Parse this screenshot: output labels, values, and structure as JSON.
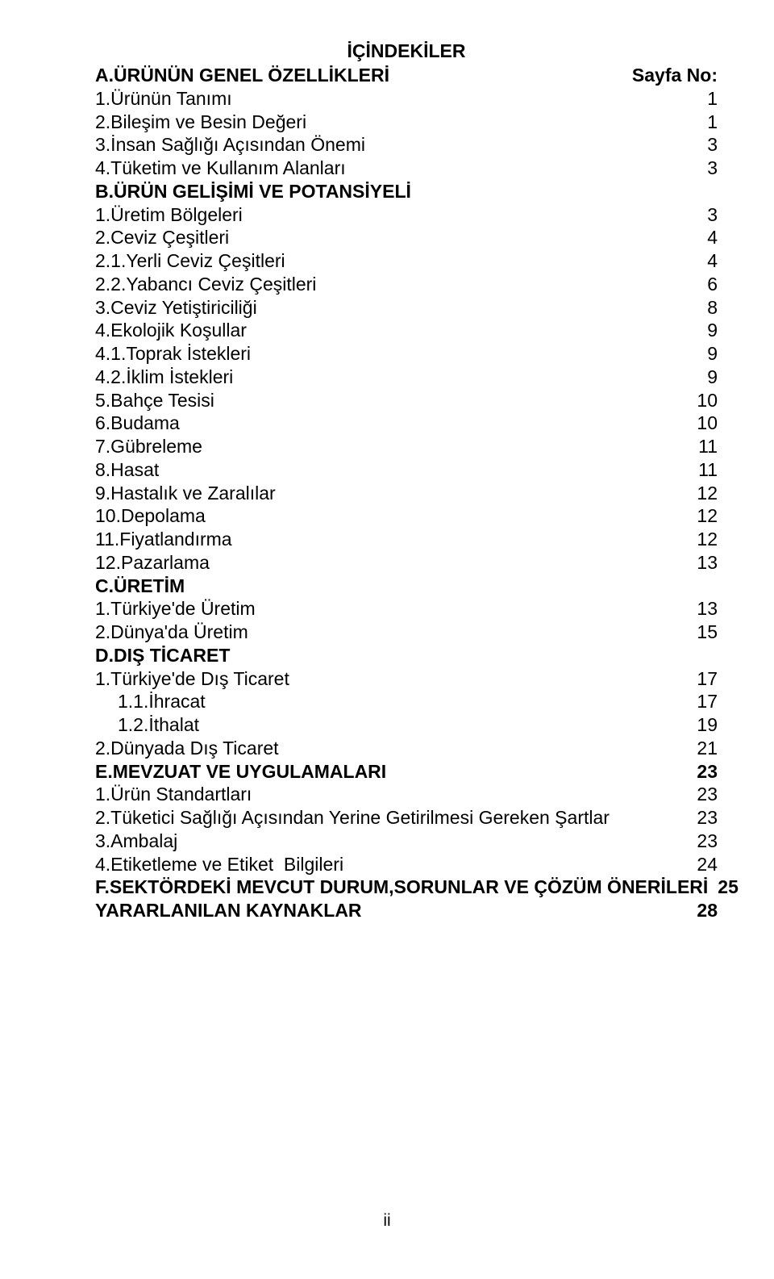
{
  "title": "İÇİNDEKİLER",
  "pageLabel": "Sayfa No:",
  "footer": "ii",
  "rows": [
    {
      "label": "A.ÜRÜNÜN GENEL ÖZELLİKLERİ",
      "page": "Sayfa No:",
      "bold": true
    },
    {
      "label": "1.Ürünün Tanımı",
      "page": "1"
    },
    {
      "label": "2.Bileşim ve Besin Değeri",
      "page": "1"
    },
    {
      "label": "3.İnsan Sağlığı Açısından Önemi",
      "page": "3"
    },
    {
      "label": "4.Tüketim ve Kullanım Alanları",
      "page": "3"
    },
    {
      "label": "B.ÜRÜN GELİŞİMİ VE POTANSİYELİ",
      "page": "",
      "bold": true
    },
    {
      "label": "1.Üretim Bölgeleri",
      "page": "3"
    },
    {
      "label": "2.Ceviz Çeşitleri",
      "page": "4"
    },
    {
      "label": "2.1.Yerli Ceviz Çeşitleri",
      "page": "4"
    },
    {
      "label": "2.2.Yabancı Ceviz Çeşitleri",
      "page": "6"
    },
    {
      "label": "3.Ceviz Yetiştiriciliği",
      "page": "8"
    },
    {
      "label": "4.Ekolojik Koşullar",
      "page": "9"
    },
    {
      "label": "4.1.Toprak İstekleri",
      "page": "9"
    },
    {
      "label": "4.2.İklim İstekleri",
      "page": "9"
    },
    {
      "label": "5.Bahçe Tesisi",
      "page": "10"
    },
    {
      "label": "6.Budama",
      "page": "10"
    },
    {
      "label": "7.Gübreleme",
      "page": "11"
    },
    {
      "label": "8.Hasat",
      "page": "11"
    },
    {
      "label": "9.Hastalık ve Zaralılar",
      "page": "12"
    },
    {
      "label": "10.Depolama",
      "page": "12"
    },
    {
      "label": "11.Fiyatlandırma",
      "page": "12"
    },
    {
      "label": "12.Pazarlama",
      "page": "13"
    },
    {
      "label": "C.ÜRETİM",
      "page": "",
      "bold": true
    },
    {
      "label": "1.Türkiye'de Üretim",
      "page": "13"
    },
    {
      "label": "2.Dünya'da Üretim",
      "page": "15"
    },
    {
      "label": "D.DIŞ TİCARET",
      "page": "",
      "bold": true
    },
    {
      "label": "1.Türkiye'de Dış Ticaret",
      "page": "17"
    },
    {
      "label": "1.1.İhracat",
      "page": "17",
      "indent": 1
    },
    {
      "label": "1.2.İthalat",
      "page": "19",
      "indent": 1
    },
    {
      "label": "2.Dünyada Dış Ticaret",
      "page": "21"
    },
    {
      "label": "E.MEVZUAT VE UYGULAMALARI",
      "page": "23",
      "bold": true
    },
    {
      "label": "1.Ürün Standartları",
      "page": "23"
    },
    {
      "label": "2.Tüketici Sağlığı Açısından Yerine Getirilmesi Gereken Şartlar",
      "page": "23"
    },
    {
      "label": "3.Ambalaj",
      "page": "23"
    },
    {
      "label": "4.Etiketleme ve Etiket  Bilgileri",
      "page": "24"
    },
    {
      "label": "F.SEKTÖRDEKİ MEVCUT DURUM,SORUNLAR VE ÇÖZÜM ÖNERİLERİ",
      "page": "25",
      "bold": true
    },
    {
      "label": "YARARLANILAN KAYNAKLAR",
      "page": "28",
      "bold": true
    }
  ]
}
